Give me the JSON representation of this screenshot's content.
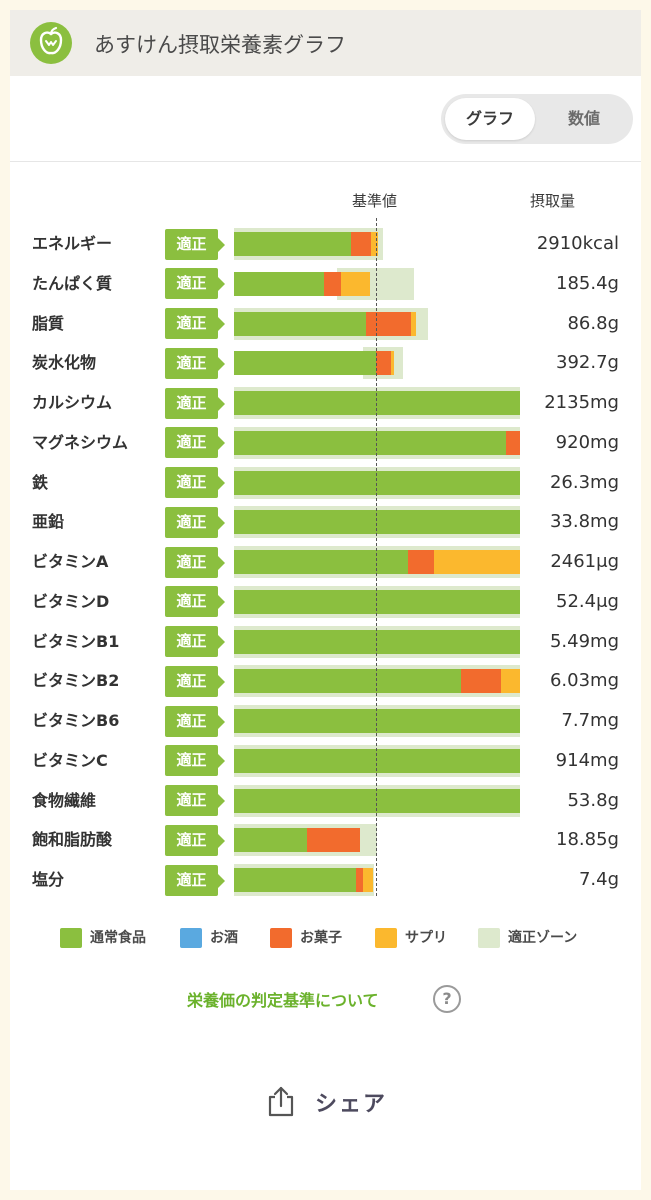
{
  "header": {
    "title": "あすけん摂取栄養素グラフ",
    "logo_icon": "apple-icon"
  },
  "toggle": {
    "graph_label": "グラフ",
    "numeric_label": "数値",
    "selected": "グラフ"
  },
  "columns": {
    "reference": "基準値",
    "intake": "摂取量"
  },
  "colors": {
    "normal_food": "#8bbf3f",
    "alcohol": "#5aa9e0",
    "snacks": "#f26b2d",
    "supplement": "#fbb82e",
    "proper_zone": "#dde9cd"
  },
  "chart_data": {
    "type": "bar",
    "stacked": true,
    "orientation": "horizontal",
    "units": "reference value = 1.0",
    "axis_max": 2.0,
    "series_keys": [
      "normal_food",
      "alcohol",
      "snacks",
      "supplement"
    ],
    "rows": [
      {
        "name": "エネルギー",
        "status": "適正",
        "value": "2910kcal",
        "zone": [
          0.0,
          1.04
        ],
        "normal_food": 0.82,
        "alcohol": 0,
        "snacks": 0.14,
        "supplement": 0.05
      },
      {
        "name": "たんぱく質",
        "status": "適正",
        "value": "185.4g",
        "zone": [
          0.72,
          1.26
        ],
        "normal_food": 0.63,
        "alcohol": 0,
        "snacks": 0.12,
        "supplement": 0.2
      },
      {
        "name": "脂質",
        "status": "適正",
        "value": "86.8g",
        "zone": [
          0.0,
          1.36
        ],
        "normal_food": 0.92,
        "alcohol": 0,
        "snacks": 0.32,
        "supplement": 0.03
      },
      {
        "name": "炭水化物",
        "status": "適正",
        "value": "392.7g",
        "zone": [
          0.9,
          1.18
        ],
        "normal_food": 0.99,
        "alcohol": 0,
        "snacks": 0.11,
        "supplement": 0.02
      },
      {
        "name": "カルシウム",
        "status": "適正",
        "value": "2135mg",
        "zone": [
          0.0,
          2.0
        ],
        "normal_food": 2.0,
        "alcohol": 0,
        "snacks": 0,
        "supplement": 0
      },
      {
        "name": "マグネシウム",
        "status": "適正",
        "value": "920mg",
        "zone": [
          0.0,
          2.0
        ],
        "normal_food": 1.9,
        "alcohol": 0,
        "snacks": 0.1,
        "supplement": 0
      },
      {
        "name": "鉄",
        "status": "適正",
        "value": "26.3mg",
        "zone": [
          0.0,
          2.0
        ],
        "normal_food": 2.0,
        "alcohol": 0,
        "snacks": 0,
        "supplement": 0
      },
      {
        "name": "亜鉛",
        "status": "適正",
        "value": "33.8mg",
        "zone": [
          0.0,
          2.0
        ],
        "normal_food": 2.0,
        "alcohol": 0,
        "snacks": 0,
        "supplement": 0
      },
      {
        "name": "ビタミンA",
        "status": "適正",
        "value": "2461μg",
        "zone": [
          0.0,
          2.0
        ],
        "normal_food": 1.22,
        "alcohol": 0,
        "snacks": 0.18,
        "supplement": 0.6
      },
      {
        "name": "ビタミンD",
        "status": "適正",
        "value": "52.4μg",
        "zone": [
          0.0,
          2.0
        ],
        "normal_food": 2.0,
        "alcohol": 0,
        "snacks": 0,
        "supplement": 0
      },
      {
        "name": "ビタミンB1",
        "status": "適正",
        "value": "5.49mg",
        "zone": [
          0.0,
          2.0
        ],
        "normal_food": 2.0,
        "alcohol": 0,
        "snacks": 0,
        "supplement": 0
      },
      {
        "name": "ビタミンB2",
        "status": "適正",
        "value": "6.03mg",
        "zone": [
          0.0,
          2.0
        ],
        "normal_food": 1.59,
        "alcohol": 0,
        "snacks": 0.28,
        "supplement": 0.13
      },
      {
        "name": "ビタミンB6",
        "status": "適正",
        "value": "7.7mg",
        "zone": [
          0.0,
          2.0
        ],
        "normal_food": 2.0,
        "alcohol": 0,
        "snacks": 0,
        "supplement": 0
      },
      {
        "name": "ビタミンC",
        "status": "適正",
        "value": "914mg",
        "zone": [
          0.0,
          2.0
        ],
        "normal_food": 2.0,
        "alcohol": 0,
        "snacks": 0,
        "supplement": 0
      },
      {
        "name": "食物繊維",
        "status": "適正",
        "value": "53.8g",
        "zone": [
          0.0,
          2.0
        ],
        "normal_food": 2.0,
        "alcohol": 0,
        "snacks": 0,
        "supplement": 0
      },
      {
        "name": "飽和脂肪酸",
        "status": "適正",
        "value": "18.85g",
        "zone": [
          0.0,
          1.0
        ],
        "normal_food": 0.51,
        "alcohol": 0,
        "snacks": 0.37,
        "supplement": 0
      },
      {
        "name": "塩分",
        "status": "適正",
        "value": "7.4g",
        "zone": [
          0.0,
          0.98
        ],
        "normal_food": 0.85,
        "alcohol": 0,
        "snacks": 0.05,
        "supplement": 0.07
      }
    ]
  },
  "legend": [
    {
      "label": "通常食品",
      "key": "normal_food"
    },
    {
      "label": "お酒",
      "key": "alcohol"
    },
    {
      "label": "お菓子",
      "key": "snacks"
    },
    {
      "label": "サプリ",
      "key": "supplement"
    },
    {
      "label": "適正ゾーン",
      "key": "proper_zone"
    }
  ],
  "criteria_link": "栄養価の判定基準について",
  "help_icon": "question-circle-icon",
  "share": {
    "label": "シェア",
    "icon": "share-upload-icon"
  }
}
